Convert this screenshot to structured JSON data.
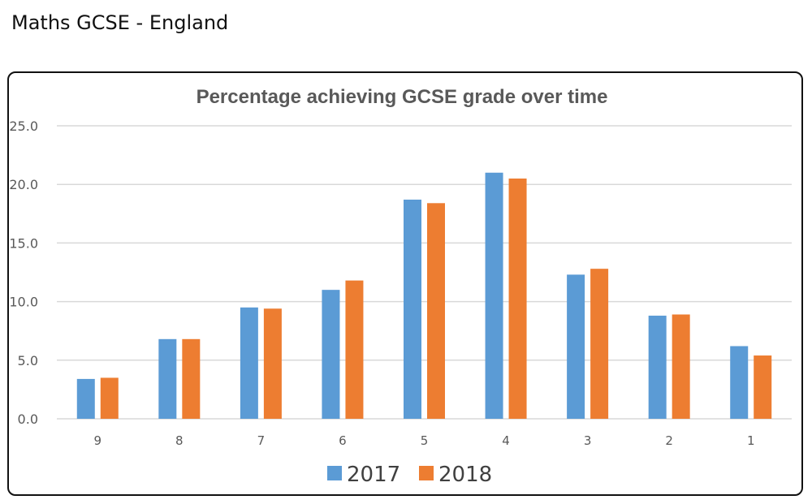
{
  "page_title": "Maths GCSE - England",
  "chart_data": {
    "type": "bar",
    "title": "Percentage achieving GCSE grade over time",
    "xlabel": "",
    "ylabel": "",
    "categories": [
      "9",
      "8",
      "7",
      "6",
      "5",
      "4",
      "3",
      "2",
      "1"
    ],
    "series": [
      {
        "name": "2017",
        "color": "#5b9bd5",
        "values": [
          3.4,
          6.8,
          9.5,
          11.0,
          18.7,
          21.0,
          12.3,
          8.8,
          6.2
        ]
      },
      {
        "name": "2018",
        "color": "#ed7d31",
        "values": [
          3.5,
          6.8,
          9.4,
          11.8,
          18.4,
          20.5,
          12.8,
          8.9,
          5.4
        ]
      }
    ],
    "ylim": [
      0,
      25
    ],
    "yticks": [
      "0.0",
      "5.0",
      "10.0",
      "15.0",
      "20.0",
      "25.0"
    ],
    "grid": true,
    "legend_position": "bottom"
  }
}
